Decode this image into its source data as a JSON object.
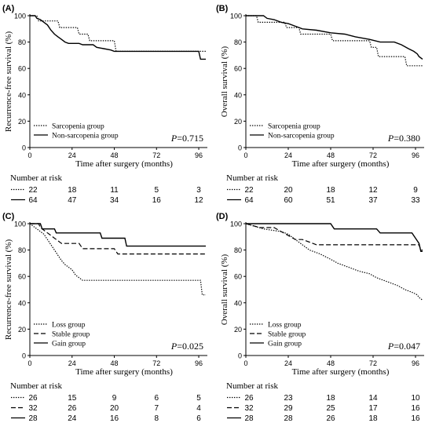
{
  "figure": {
    "x_label": "Time after surgery (months)",
    "risk_title": "Number at risk"
  },
  "chart_data": [
    {
      "panel_label": "(A)",
      "type": "line",
      "title": "",
      "ylabel": "Recurrence-free survival (%)",
      "xlabel": "Time after surgery (months)",
      "xlim": [
        0,
        100
      ],
      "ylim": [
        0,
        100
      ],
      "x_ticks": [
        0,
        24,
        48,
        72,
        96
      ],
      "y_ticks": [
        0,
        20,
        40,
        60,
        80,
        100
      ],
      "grid": false,
      "legend_position": "bottom-left",
      "p_value": "=0.715",
      "series": [
        {
          "name": "Sarcopenia group",
          "style": "dotted",
          "points": [
            [
              0,
              100
            ],
            [
              4,
              100
            ],
            [
              5,
              96
            ],
            [
              16,
              96
            ],
            [
              17,
              91
            ],
            [
              27,
              91
            ],
            [
              28,
              86
            ],
            [
              33,
              86
            ],
            [
              34,
              81
            ],
            [
              48,
              81
            ],
            [
              49,
              73
            ],
            [
              99,
              73
            ],
            [
              100,
              73
            ]
          ]
        },
        {
          "name": "Non-sarcopenia group",
          "style": "solid",
          "points": [
            [
              0,
              100
            ],
            [
              3,
              100
            ],
            [
              4,
              98
            ],
            [
              6,
              97
            ],
            [
              8,
              95
            ],
            [
              10,
              93
            ],
            [
              12,
              89
            ],
            [
              14,
              86
            ],
            [
              16,
              84
            ],
            [
              18,
              82
            ],
            [
              20,
              80
            ],
            [
              22,
              79
            ],
            [
              28,
              79
            ],
            [
              30,
              78
            ],
            [
              36,
              78
            ],
            [
              38,
              76
            ],
            [
              42,
              75
            ],
            [
              46,
              74
            ],
            [
              48,
              73
            ],
            [
              96,
              73
            ],
            [
              97,
              67
            ],
            [
              100,
              67
            ]
          ]
        }
      ],
      "risk_table": {
        "times": [
          0,
          24,
          48,
          72,
          96
        ],
        "rows": [
          {
            "style": "dotted",
            "values": [
              "22",
              "18",
              "11",
              "5",
              "3"
            ]
          },
          {
            "style": "solid",
            "values": [
              "64",
              "47",
              "34",
              "16",
              "12"
            ]
          }
        ]
      }
    },
    {
      "panel_label": "(B)",
      "type": "line",
      "title": "",
      "ylabel": "Overall survival (%)",
      "xlabel": "Time after surgery (months)",
      "xlim": [
        0,
        100
      ],
      "ylim": [
        0,
        100
      ],
      "x_ticks": [
        0,
        24,
        48,
        72,
        96
      ],
      "y_ticks": [
        0,
        20,
        40,
        60,
        80,
        100
      ],
      "grid": false,
      "legend_position": "bottom-left",
      "p_value": "=0.380",
      "series": [
        {
          "name": "Sarcopenia group",
          "style": "dotted",
          "points": [
            [
              0,
              100
            ],
            [
              6,
              100
            ],
            [
              7,
              95
            ],
            [
              22,
              95
            ],
            [
              23,
              91
            ],
            [
              30,
              91
            ],
            [
              31,
              86
            ],
            [
              48,
              86
            ],
            [
              49,
              81
            ],
            [
              70,
              81
            ],
            [
              71,
              76
            ],
            [
              74,
              76
            ],
            [
              75,
              69
            ],
            [
              90,
              69
            ],
            [
              91,
              62
            ],
            [
              100,
              62
            ]
          ]
        },
        {
          "name": "Non-sarcopenia group",
          "style": "solid",
          "points": [
            [
              0,
              100
            ],
            [
              10,
              100
            ],
            [
              12,
              98
            ],
            [
              16,
              97
            ],
            [
              20,
              95
            ],
            [
              24,
              94
            ],
            [
              28,
              92
            ],
            [
              32,
              90
            ],
            [
              40,
              89
            ],
            [
              48,
              87
            ],
            [
              56,
              86
            ],
            [
              62,
              84
            ],
            [
              70,
              82
            ],
            [
              76,
              80
            ],
            [
              84,
              80
            ],
            [
              88,
              78
            ],
            [
              92,
              75
            ],
            [
              95,
              73
            ],
            [
              97,
              71
            ],
            [
              98,
              69
            ],
            [
              100,
              67
            ]
          ]
        }
      ],
      "risk_table": {
        "times": [
          0,
          24,
          48,
          72,
          96
        ],
        "rows": [
          {
            "style": "dotted",
            "values": [
              "22",
              "20",
              "18",
              "12",
              "9"
            ]
          },
          {
            "style": "solid",
            "values": [
              "64",
              "60",
              "51",
              "37",
              "33"
            ]
          }
        ]
      }
    },
    {
      "panel_label": "(C)",
      "type": "line",
      "title": "",
      "ylabel": "Recurrence-free survival (%)",
      "xlabel": "Time after surgery (months)",
      "xlim": [
        0,
        100
      ],
      "ylim": [
        0,
        100
      ],
      "x_ticks": [
        0,
        24,
        48,
        72,
        96
      ],
      "y_ticks": [
        0,
        20,
        40,
        60,
        80,
        100
      ],
      "grid": false,
      "legend_position": "bottom-left",
      "p_value": "=0.025",
      "series": [
        {
          "name": "Loss group",
          "style": "dotted",
          "points": [
            [
              0,
              100
            ],
            [
              4,
              96
            ],
            [
              8,
              92
            ],
            [
              10,
              88
            ],
            [
              12,
              84
            ],
            [
              14,
              80
            ],
            [
              16,
              76
            ],
            [
              18,
              72
            ],
            [
              20,
              69
            ],
            [
              24,
              65
            ],
            [
              26,
              61
            ],
            [
              30,
              57
            ],
            [
              97,
              57
            ],
            [
              98,
              46
            ],
            [
              100,
              46
            ]
          ]
        },
        {
          "name": "Stable group",
          "style": "dashed",
          "points": [
            [
              0,
              100
            ],
            [
              5,
              100
            ],
            [
              6,
              97
            ],
            [
              9,
              94
            ],
            [
              12,
              91
            ],
            [
              15,
              88
            ],
            [
              18,
              85
            ],
            [
              28,
              85
            ],
            [
              30,
              81
            ],
            [
              48,
              81
            ],
            [
              50,
              77
            ],
            [
              100,
              77
            ]
          ]
        },
        {
          "name": "Gain group",
          "style": "solid",
          "points": [
            [
              0,
              100
            ],
            [
              6,
              100
            ],
            [
              7,
              96
            ],
            [
              14,
              96
            ],
            [
              15,
              93
            ],
            [
              40,
              93
            ],
            [
              41,
              89
            ],
            [
              54,
              89
            ],
            [
              55,
              83
            ],
            [
              100,
              83
            ]
          ]
        }
      ],
      "risk_table": {
        "times": [
          0,
          24,
          48,
          72,
          96
        ],
        "rows": [
          {
            "style": "dotted",
            "values": [
              "26",
              "15",
              "9",
              "6",
              "5"
            ]
          },
          {
            "style": "dashed",
            "values": [
              "32",
              "26",
              "20",
              "7",
              "4"
            ]
          },
          {
            "style": "solid",
            "values": [
              "28",
              "24",
              "16",
              "8",
              "6"
            ]
          }
        ]
      }
    },
    {
      "panel_label": "(D)",
      "type": "line",
      "title": "",
      "ylabel": "Overall survival (%)",
      "xlabel": "Time after surgery (months)",
      "xlim": [
        0,
        100
      ],
      "ylim": [
        0,
        100
      ],
      "x_ticks": [
        0,
        24,
        48,
        72,
        96
      ],
      "y_ticks": [
        0,
        20,
        40,
        60,
        80,
        100
      ],
      "grid": false,
      "legend_position": "bottom-left",
      "p_value": "=0.047",
      "series": [
        {
          "name": "Loss group",
          "style": "dotted",
          "points": [
            [
              0,
              100
            ],
            [
              10,
              96
            ],
            [
              20,
              94
            ],
            [
              24,
              92
            ],
            [
              28,
              88
            ],
            [
              32,
              84
            ],
            [
              36,
              80
            ],
            [
              42,
              77
            ],
            [
              48,
              73
            ],
            [
              52,
              70
            ],
            [
              58,
              67
            ],
            [
              64,
              64
            ],
            [
              70,
              62
            ],
            [
              74,
              59
            ],
            [
              80,
              56
            ],
            [
              86,
              53
            ],
            [
              90,
              50
            ],
            [
              94,
              48
            ],
            [
              97,
              46
            ],
            [
              98,
              44
            ],
            [
              100,
              42
            ]
          ]
        },
        {
          "name": "Stable group",
          "style": "dashed",
          "points": [
            [
              0,
              100
            ],
            [
              8,
              97
            ],
            [
              16,
              97
            ],
            [
              20,
              94
            ],
            [
              24,
              91
            ],
            [
              28,
              88
            ],
            [
              32,
              88
            ],
            [
              36,
              86
            ],
            [
              40,
              84
            ],
            [
              98,
              84
            ],
            [
              99,
              80
            ],
            [
              100,
              80
            ]
          ]
        },
        {
          "name": "Gain group",
          "style": "solid",
          "points": [
            [
              0,
              100
            ],
            [
              48,
              100
            ],
            [
              50,
              96
            ],
            [
              74,
              96
            ],
            [
              76,
              93
            ],
            [
              94,
              93
            ],
            [
              96,
              89
            ],
            [
              98,
              85
            ],
            [
              99,
              79
            ],
            [
              100,
              79
            ]
          ]
        }
      ],
      "risk_table": {
        "times": [
          0,
          24,
          48,
          72,
          96
        ],
        "rows": [
          {
            "style": "dotted",
            "values": [
              "26",
              "23",
              "18",
              "14",
              "10"
            ]
          },
          {
            "style": "dashed",
            "values": [
              "32",
              "29",
              "25",
              "17",
              "16"
            ]
          },
          {
            "style": "solid",
            "values": [
              "28",
              "28",
              "26",
              "18",
              "16"
            ]
          }
        ]
      }
    }
  ]
}
